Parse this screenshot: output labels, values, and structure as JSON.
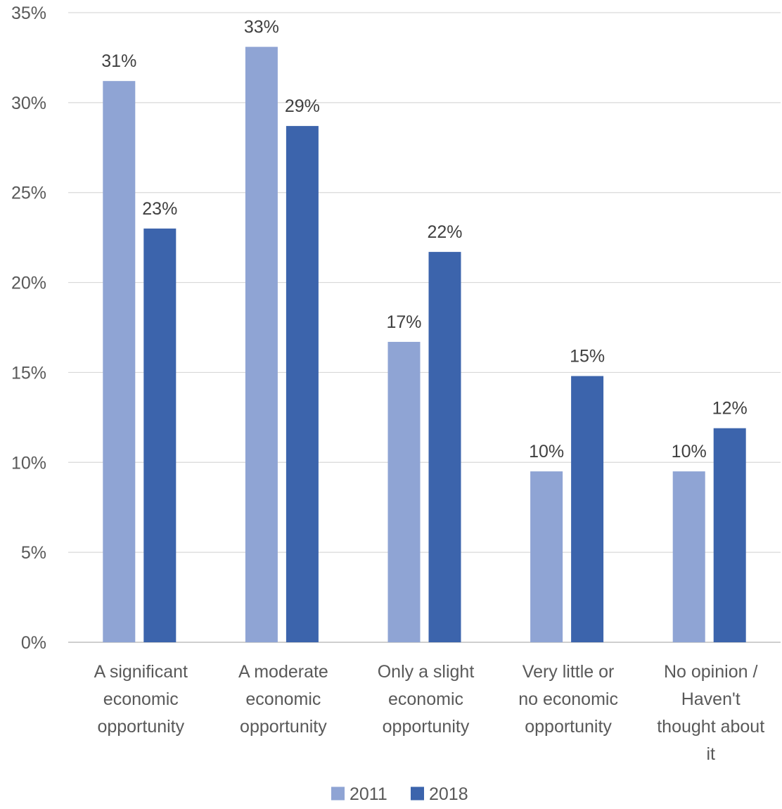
{
  "chart_data": {
    "type": "bar",
    "title": "",
    "xlabel": "",
    "ylabel": "",
    "categories": [
      [
        "A significant",
        "economic",
        "opportunity"
      ],
      [
        "A moderate",
        "economic",
        "opportunity"
      ],
      [
        "Only a slight",
        "economic",
        "opportunity"
      ],
      [
        "Very little or",
        "no economic",
        "opportunity"
      ],
      [
        "No opinion /",
        "Haven't",
        "thought about",
        "it"
      ]
    ],
    "series": [
      {
        "name": "2011",
        "color": "#8FA4D4",
        "values": [
          31.2,
          33.1,
          16.7,
          9.5,
          9.5
        ],
        "labels": [
          "31%",
          "33%",
          "17%",
          "10%",
          "10%"
        ]
      },
      {
        "name": "2018",
        "color": "#3C64AC",
        "values": [
          23.0,
          28.7,
          21.7,
          14.8,
          11.9
        ],
        "labels": [
          "23%",
          "29%",
          "22%",
          "15%",
          "12%"
        ]
      }
    ],
    "ylim": [
      0,
      35
    ],
    "yticks": [
      0,
      5,
      10,
      15,
      20,
      25,
      30,
      35
    ],
    "ytick_labels": [
      "0%",
      "5%",
      "10%",
      "15%",
      "20%",
      "25%",
      "30%",
      "35%"
    ],
    "grid": true,
    "grid_color": "#D9D9D9",
    "legend_position": "bottom"
  }
}
